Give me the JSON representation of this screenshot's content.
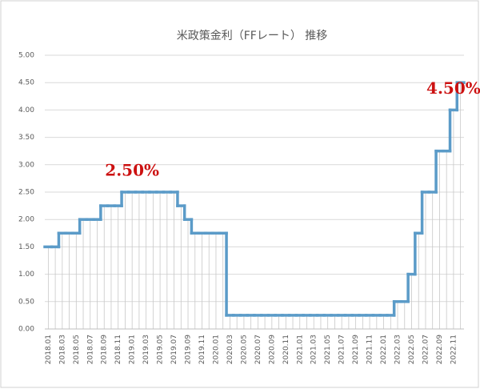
{
  "chart_data": {
    "type": "step-line",
    "title": "米政策金利（FFレート） 推移",
    "categories": [
      "2018.01",
      null,
      "2018.03",
      null,
      "2018.05",
      null,
      "2018.07",
      null,
      "2018.09",
      null,
      "2018.11",
      null,
      "2019.01",
      null,
      "2019.03",
      null,
      "2019.05",
      null,
      "2019.07",
      null,
      "2019.09",
      null,
      "2019.11",
      null,
      "2020.01",
      null,
      "2020.03",
      null,
      "2020.05",
      null,
      "2020.07",
      null,
      "2020.09",
      null,
      "2020.11",
      null,
      "2021.01",
      null,
      "2021.03",
      null,
      "2021.05",
      null,
      "2021.07",
      null,
      "2021.09",
      null,
      "2021.11",
      null,
      "2022.01",
      null,
      "2022.03",
      null,
      "2022.05",
      null,
      "2022.07",
      null,
      "2022.09",
      null,
      "2022.11",
      null
    ],
    "values": [
      1.5,
      1.5,
      1.75,
      1.75,
      1.75,
      2.0,
      2.0,
      2.0,
      2.25,
      2.25,
      2.25,
      2.5,
      2.5,
      2.5,
      2.5,
      2.5,
      2.5,
      2.5,
      2.5,
      2.25,
      2.0,
      1.75,
      1.75,
      1.75,
      1.75,
      1.75,
      0.25,
      0.25,
      0.25,
      0.25,
      0.25,
      0.25,
      0.25,
      0.25,
      0.25,
      0.25,
      0.25,
      0.25,
      0.25,
      0.25,
      0.25,
      0.25,
      0.25,
      0.25,
      0.25,
      0.25,
      0.25,
      0.25,
      0.25,
      0.25,
      0.5,
      0.5,
      1.0,
      1.75,
      2.5,
      2.5,
      3.25,
      3.25,
      4.0,
      4.5
    ],
    "color": "#5b9bc8",
    "ylim": [
      0,
      5
    ],
    "yticks": [
      {
        "value": 0,
        "label": "0.00"
      },
      {
        "value": 0.5,
        "label": "0.50"
      },
      {
        "value": 1,
        "label": "1.00"
      },
      {
        "value": 1.5,
        "label": "1.50"
      },
      {
        "value": 2,
        "label": "2.00"
      },
      {
        "value": 2.5,
        "label": "2.50"
      },
      {
        "value": 3,
        "label": "3.00"
      },
      {
        "value": 3.5,
        "label": "3.50"
      },
      {
        "value": 4,
        "label": "4.00"
      },
      {
        "value": 4.5,
        "label": "4.50"
      },
      {
        "value": 5,
        "label": "5.00"
      }
    ],
    "grid": true,
    "annotations": [
      {
        "text": "2.50%",
        "index": 12,
        "color": "#cc1111"
      },
      {
        "text": "4.50%",
        "index": 58,
        "color": "#cc1111"
      }
    ]
  }
}
